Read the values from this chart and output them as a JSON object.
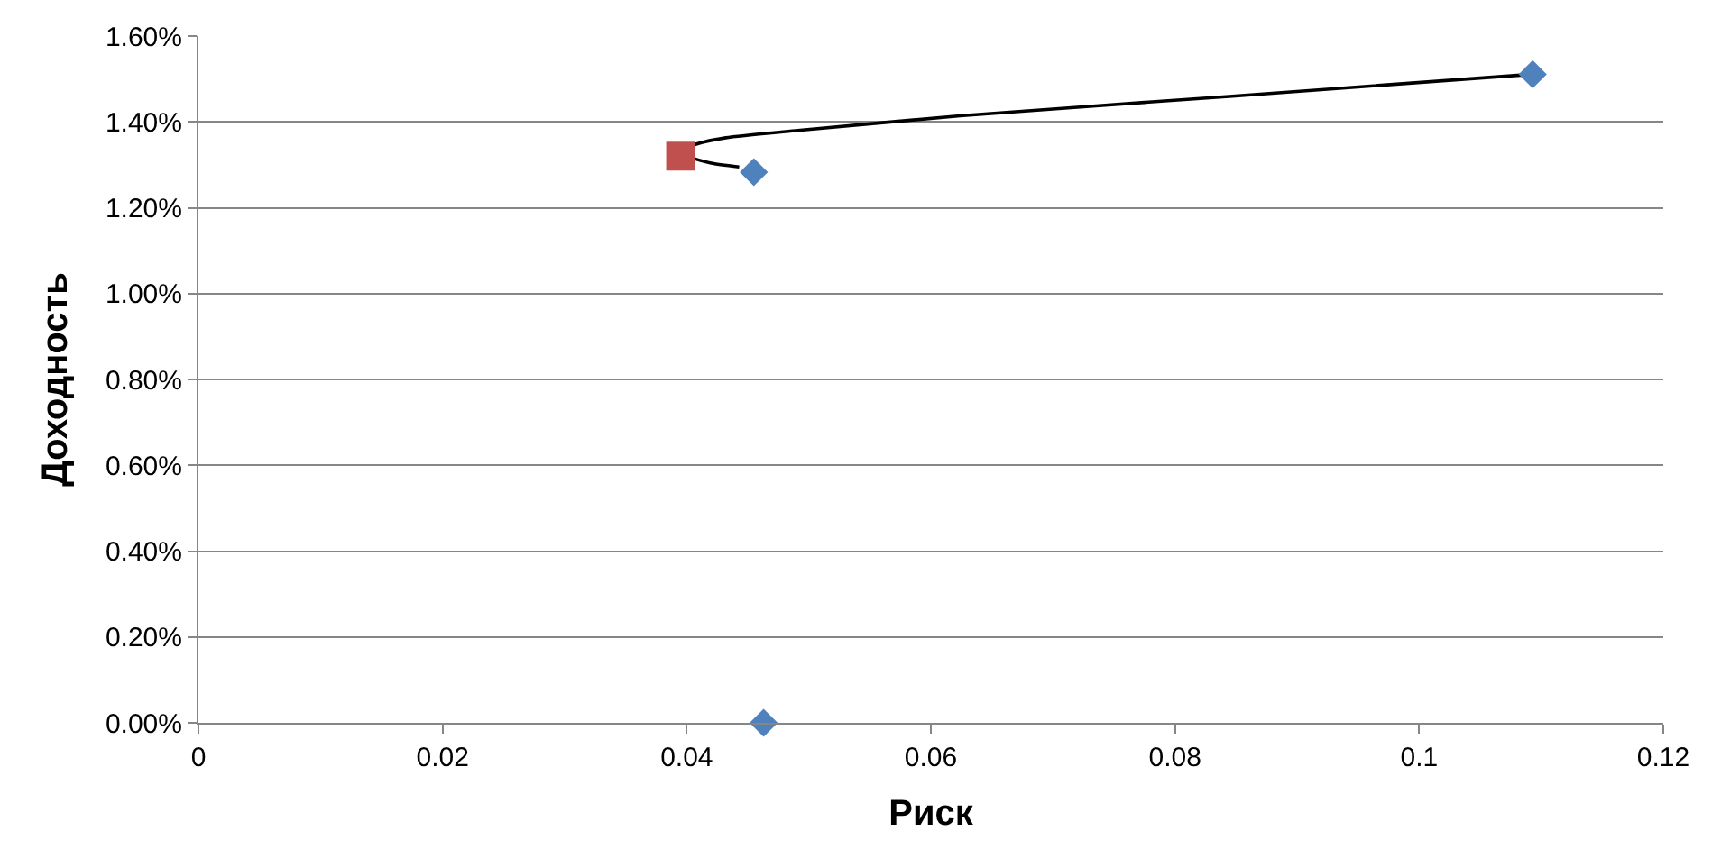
{
  "chart_data": {
    "type": "scatter",
    "xlabel": "Риск",
    "ylabel": "Доходность",
    "xlim": [
      0,
      0.12
    ],
    "xticks": [
      0,
      0.02,
      0.04,
      0.06,
      0.08,
      0.1,
      0.12
    ],
    "ylim": [
      0,
      1.6
    ],
    "yticks": [
      {
        "value": 0,
        "label": "0.00%"
      },
      {
        "value": 0.2,
        "label": "0.20%"
      },
      {
        "value": 0.4,
        "label": "0.40%"
      },
      {
        "value": 0.6,
        "label": "0.60%"
      },
      {
        "value": 0.8,
        "label": "0.80%"
      },
      {
        "value": 1.0,
        "label": "1.00%"
      },
      {
        "value": 1.2,
        "label": "1.20%"
      },
      {
        "value": 1.4,
        "label": "1.40%"
      },
      {
        "value": 1.6,
        "label": "1.60%"
      }
    ],
    "grid": "y",
    "series": [
      {
        "type": "line",
        "marker": "none",
        "color": "#000000",
        "x": [
          0.0443,
          0.042,
          0.0405,
          0.0399,
          0.0406,
          0.0432,
          0.0491,
          0.0624,
          0.0847,
          0.1093
        ],
        "values": [
          1.295,
          1.304,
          1.316,
          1.329,
          1.346,
          1.363,
          1.38,
          1.414,
          1.46,
          1.511
        ]
      },
      {
        "marker": "diamond",
        "color": "#4f81bd",
        "x": [
          0.1093,
          0.0455,
          0.0463
        ],
        "values": [
          1.511,
          1.283,
          0.0
        ]
      },
      {
        "marker": "square",
        "color": "#c0504d",
        "x": [
          0.0395
        ],
        "values": [
          1.32
        ]
      }
    ]
  }
}
